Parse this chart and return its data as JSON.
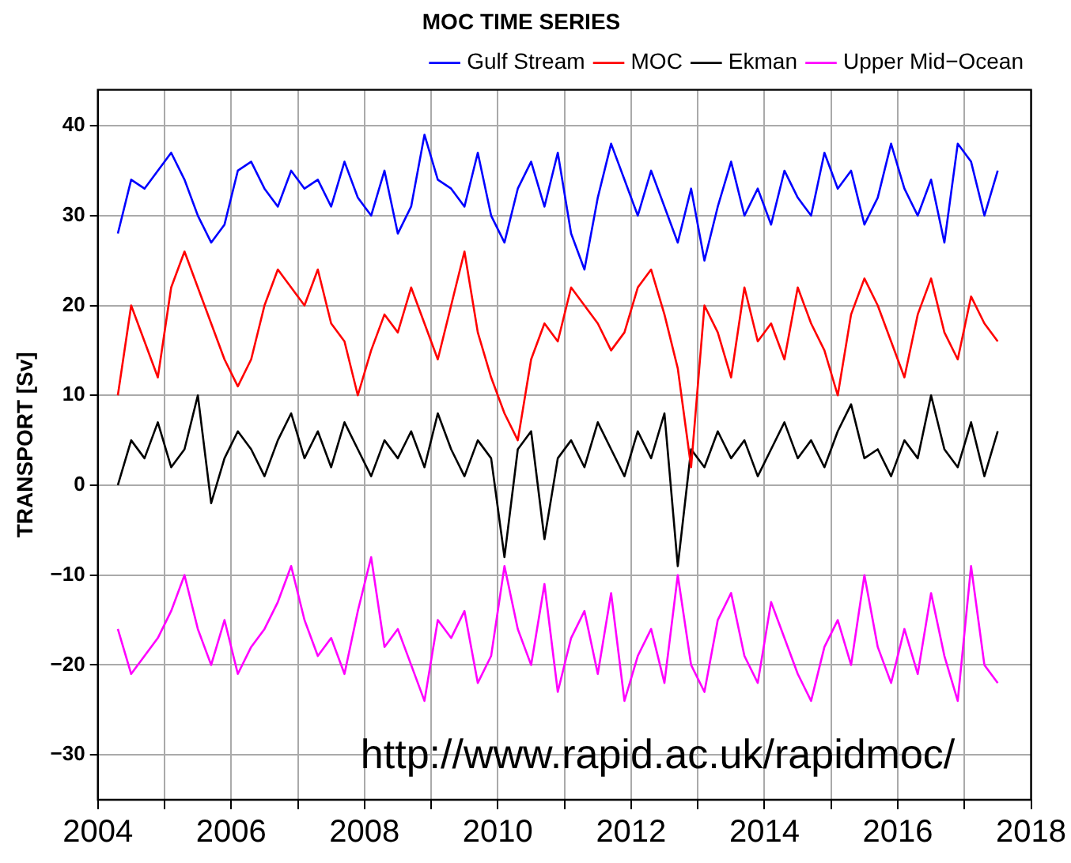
{
  "chart_data": {
    "type": "line",
    "title": "MOC TIME SERIES",
    "ylabel": "TRANSPORT [Sv]",
    "annotations": [
      "http://www.rapid.ac.uk/rapidmoc/"
    ],
    "x": [
      2004.3,
      2004.5,
      2004.7,
      2004.9,
      2005.1,
      2005.3,
      2005.5,
      2005.7,
      2005.9,
      2006.1,
      2006.3,
      2006.5,
      2006.7,
      2006.9,
      2007.1,
      2007.3,
      2007.5,
      2007.7,
      2007.9,
      2008.1,
      2008.3,
      2008.5,
      2008.7,
      2008.9,
      2009.1,
      2009.3,
      2009.5,
      2009.7,
      2009.9,
      2010.1,
      2010.3,
      2010.5,
      2010.7,
      2010.9,
      2011.1,
      2011.3,
      2011.5,
      2011.7,
      2011.9,
      2012.1,
      2012.3,
      2012.5,
      2012.7,
      2012.9,
      2013.1,
      2013.3,
      2013.5,
      2013.7,
      2013.9,
      2014.1,
      2014.3,
      2014.5,
      2014.7,
      2014.9,
      2015.1,
      2015.3,
      2015.5,
      2015.7,
      2015.9,
      2016.1,
      2016.3,
      2016.5,
      2016.7,
      2016.9,
      2017.1,
      2017.3,
      2017.5
    ],
    "series": [
      {
        "name": "Gulf Stream",
        "color": "#0000ff",
        "values": [
          28,
          34,
          33,
          35,
          37,
          34,
          30,
          27,
          29,
          35,
          36,
          33,
          31,
          35,
          33,
          34,
          31,
          36,
          32,
          30,
          35,
          28,
          31,
          39,
          34,
          33,
          31,
          37,
          30,
          27,
          33,
          36,
          31,
          37,
          28,
          24,
          32,
          38,
          34,
          30,
          35,
          31,
          27,
          33,
          25,
          31,
          36,
          30,
          33,
          29,
          35,
          32,
          30,
          37,
          33,
          35,
          29,
          32,
          38,
          33,
          30,
          34,
          27,
          38,
          36,
          30,
          35
        ]
      },
      {
        "name": "MOC",
        "color": "#ff0000",
        "values": [
          10,
          20,
          16,
          12,
          22,
          26,
          22,
          18,
          14,
          11,
          14,
          20,
          24,
          22,
          20,
          24,
          18,
          16,
          10,
          15,
          19,
          17,
          22,
          18,
          14,
          20,
          26,
          17,
          12,
          8,
          5,
          14,
          18,
          16,
          22,
          20,
          18,
          15,
          17,
          22,
          24,
          19,
          13,
          2,
          20,
          17,
          12,
          22,
          16,
          18,
          14,
          22,
          18,
          15,
          10,
          19,
          23,
          20,
          16,
          12,
          19,
          23,
          17,
          14,
          21,
          18,
          16
        ]
      },
      {
        "name": "Ekman",
        "color": "#000000",
        "values": [
          0,
          5,
          3,
          7,
          2,
          4,
          10,
          -2,
          3,
          6,
          4,
          1,
          5,
          8,
          3,
          6,
          2,
          7,
          4,
          1,
          5,
          3,
          6,
          2,
          8,
          4,
          1,
          5,
          3,
          -8,
          4,
          6,
          -6,
          3,
          5,
          2,
          7,
          4,
          1,
          6,
          3,
          8,
          -9,
          4,
          2,
          6,
          3,
          5,
          1,
          4,
          7,
          3,
          5,
          2,
          6,
          9,
          3,
          4,
          1,
          5,
          3,
          10,
          4,
          2,
          7,
          1,
          6
        ]
      },
      {
        "name": "Upper Mid−Ocean",
        "color": "#ff00ff",
        "values": [
          -16,
          -21,
          -19,
          -17,
          -14,
          -10,
          -16,
          -20,
          -15,
          -21,
          -18,
          -16,
          -13,
          -9,
          -15,
          -19,
          -17,
          -21,
          -14,
          -8,
          -18,
          -16,
          -20,
          -24,
          -15,
          -17,
          -14,
          -22,
          -19,
          -9,
          -16,
          -20,
          -11,
          -23,
          -17,
          -14,
          -21,
          -12,
          -24,
          -19,
          -16,
          -22,
          -10,
          -20,
          -23,
          -15,
          -12,
          -19,
          -22,
          -13,
          -17,
          -21,
          -24,
          -18,
          -15,
          -20,
          -10,
          -18,
          -22,
          -16,
          -21,
          -12,
          -19,
          -24,
          -9,
          -20,
          -22
        ]
      }
    ],
    "xlim": [
      2004,
      2018
    ],
    "xticks": [
      2004,
      {
        "value": 2005,
        "label": null
      },
      2006,
      {
        "value": 2007,
        "label": null
      },
      2008,
      {
        "value": 2009,
        "label": null
      },
      2010,
      {
        "value": 2011,
        "label": null
      },
      2012,
      {
        "value": 2013,
        "label": null
      },
      2014,
      {
        "value": 2015,
        "label": null
      },
      2016,
      {
        "value": 2017,
        "label": null
      },
      2018
    ],
    "ylim": [
      -35,
      44
    ],
    "yticks": [
      -30,
      -20,
      -10,
      0,
      10,
      20,
      30,
      40
    ],
    "grid": true,
    "legend": "top right",
    "marker": "none",
    "line_style": "solid"
  }
}
